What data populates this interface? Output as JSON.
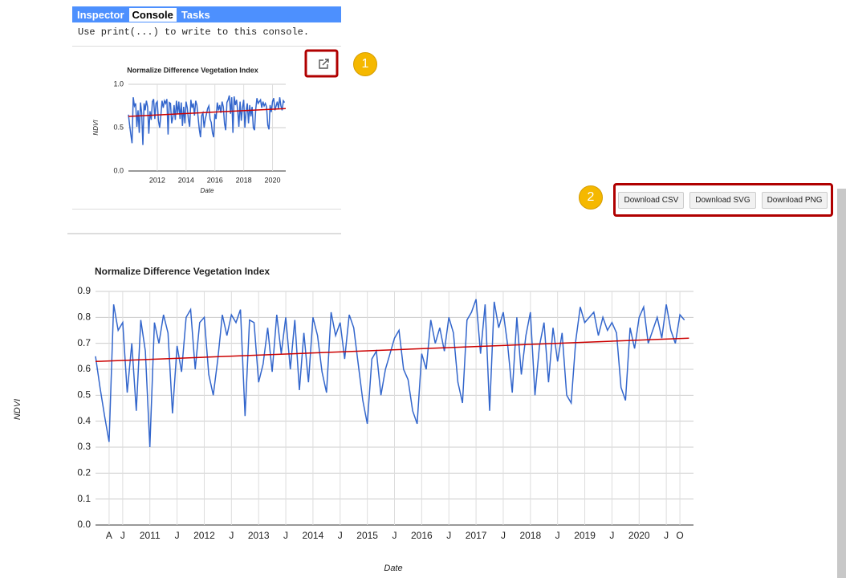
{
  "tabs": [
    "Inspector",
    "Console",
    "Tasks"
  ],
  "console_text": "Use print(...) to write to this console.",
  "annotations": [
    "1",
    "2"
  ],
  "buttons": [
    "Download CSV",
    "Download SVG",
    "Download PNG"
  ],
  "chart_data": [
    {
      "type": "line",
      "title": "Normalize Difference Vegetation Index",
      "x_label": "Date",
      "y_label": "NDVI",
      "xlim": [
        "2010-01",
        "2020-12"
      ],
      "ylim": [
        0,
        1.0
      ],
      "xticks": [
        {
          "value": "2012-01",
          "label": "2012"
        },
        {
          "value": "2014-01",
          "label": "2014"
        },
        {
          "value": "2016-01",
          "label": "2016"
        },
        {
          "value": "2018-01",
          "label": "2018"
        },
        {
          "value": "2020-01",
          "label": "2020"
        }
      ],
      "yticks": [
        {
          "value": 0,
          "label": "0.0"
        },
        0.5,
        {
          "value": 1.0,
          "label": "1.0"
        }
      ],
      "grid": true,
      "x": [
        "2010-01",
        "2010-02",
        "2010-03",
        "2010-04",
        "2010-05",
        "2010-06",
        "2010-07",
        "2010-08",
        "2010-09",
        "2010-10",
        "2010-11",
        "2010-12",
        "2011-01",
        "2011-02",
        "2011-03",
        "2011-04",
        "2011-05",
        "2011-06",
        "2011-07",
        "2011-08",
        "2011-09",
        "2011-10",
        "2011-11",
        "2011-12",
        "2012-01",
        "2012-02",
        "2012-03",
        "2012-04",
        "2012-05",
        "2012-06",
        "2012-07",
        "2012-08",
        "2012-09",
        "2012-10",
        "2012-11",
        "2012-12",
        "2013-01",
        "2013-02",
        "2013-03",
        "2013-04",
        "2013-05",
        "2013-06",
        "2013-07",
        "2013-08",
        "2013-09",
        "2013-10",
        "2013-11",
        "2013-12",
        "2014-01",
        "2014-02",
        "2014-03",
        "2014-04",
        "2014-05",
        "2014-06",
        "2014-07",
        "2014-08",
        "2014-09",
        "2014-10",
        "2014-11",
        "2014-12",
        "2015-01",
        "2015-02",
        "2015-03",
        "2015-04",
        "2015-05",
        "2015-06",
        "2015-07",
        "2015-08",
        "2015-09",
        "2015-10",
        "2015-11",
        "2015-12",
        "2016-01",
        "2016-02",
        "2016-03",
        "2016-04",
        "2016-05",
        "2016-06",
        "2016-07",
        "2016-08",
        "2016-09",
        "2016-10",
        "2016-11",
        "2016-12",
        "2017-01",
        "2017-02",
        "2017-03",
        "2017-04",
        "2017-05",
        "2017-06",
        "2017-07",
        "2017-08",
        "2017-09",
        "2017-10",
        "2017-11",
        "2017-12",
        "2018-01",
        "2018-02",
        "2018-03",
        "2018-04",
        "2018-05",
        "2018-06",
        "2018-07",
        "2018-08",
        "2018-09",
        "2018-10",
        "2018-11",
        "2018-12",
        "2019-01",
        "2019-02",
        "2019-03",
        "2019-04",
        "2019-05",
        "2019-06",
        "2019-07",
        "2019-08",
        "2019-09",
        "2019-10",
        "2019-11",
        "2019-12",
        "2020-01",
        "2020-02",
        "2020-03",
        "2020-04",
        "2020-05",
        "2020-06",
        "2020-07",
        "2020-08",
        "2020-09",
        "2020-10",
        "2020-11"
      ],
      "series": [
        {
          "color": "#3366cc",
          "values": [
            0.65,
            0.53,
            0.42,
            0.32,
            0.85,
            0.75,
            0.78,
            0.51,
            0.7,
            0.44,
            0.79,
            0.67,
            0.3,
            0.78,
            0.7,
            0.81,
            0.74,
            0.43,
            0.69,
            0.59,
            0.8,
            0.83,
            0.6,
            0.78,
            0.8,
            0.58,
            0.5,
            0.64,
            0.81,
            0.73,
            0.81,
            0.78,
            0.83,
            0.42,
            0.79,
            0.78,
            0.55,
            0.62,
            0.76,
            0.59,
            0.81,
            0.66,
            0.8,
            0.6,
            0.79,
            0.52,
            0.74,
            0.55,
            0.8,
            0.73,
            0.59,
            0.51,
            0.82,
            0.73,
            0.78,
            0.64,
            0.81,
            0.76,
            0.62,
            0.48,
            0.39,
            0.64,
            0.67,
            0.5,
            0.6,
            0.66,
            0.72,
            0.75,
            0.6,
            0.56,
            0.44,
            0.39,
            0.66,
            0.6,
            0.79,
            0.7,
            0.76,
            0.67,
            0.8,
            0.74,
            0.55,
            0.47,
            0.79,
            0.82,
            0.87,
            0.66,
            0.85,
            0.44,
            0.86,
            0.76,
            0.82,
            0.69,
            0.51,
            0.8,
            0.58,
            0.73,
            0.82,
            0.5,
            0.69,
            0.78,
            0.55,
            0.76,
            0.63,
            0.74,
            0.5,
            0.47,
            0.71,
            0.84,
            0.78,
            0.8,
            0.82,
            0.73,
            0.8,
            0.75,
            0.78,
            0.74,
            0.53,
            0.48,
            0.76,
            0.68,
            0.8,
            0.84,
            0.7,
            0.75,
            0.8,
            0.72,
            0.85,
            0.75,
            0.7,
            0.81,
            0.79
          ]
        }
      ],
      "trend": {
        "color": "#cc0000",
        "x": [
          "2010-01",
          "2020-12"
        ],
        "values": [
          0.63,
          0.72
        ]
      }
    },
    {
      "type": "line",
      "title": "Normalize Difference Vegetation Index",
      "x_label": "Date",
      "y_label": "NDVI",
      "xlim": [
        "2010-01",
        "2021-01"
      ],
      "ylim": [
        0,
        0.9
      ],
      "xticks": [
        {
          "value": "2010-04",
          "label": "A"
        },
        {
          "value": "2010-07",
          "label": "J"
        },
        {
          "value": "2011-01",
          "label": "2011"
        },
        {
          "value": "2011-07",
          "label": "J"
        },
        {
          "value": "2012-01",
          "label": "2012"
        },
        {
          "value": "2012-07",
          "label": "J"
        },
        {
          "value": "2013-01",
          "label": "2013"
        },
        {
          "value": "2013-07",
          "label": "J"
        },
        {
          "value": "2014-01",
          "label": "2014"
        },
        {
          "value": "2014-07",
          "label": "J"
        },
        {
          "value": "2015-01",
          "label": "2015"
        },
        {
          "value": "2015-07",
          "label": "J"
        },
        {
          "value": "2016-01",
          "label": "2016"
        },
        {
          "value": "2016-07",
          "label": "J"
        },
        {
          "value": "2017-01",
          "label": "2017"
        },
        {
          "value": "2017-07",
          "label": "J"
        },
        {
          "value": "2018-01",
          "label": "2018"
        },
        {
          "value": "2018-07",
          "label": "J"
        },
        {
          "value": "2019-01",
          "label": "2019"
        },
        {
          "value": "2019-07",
          "label": "J"
        },
        {
          "value": "2020-01",
          "label": "2020"
        },
        {
          "value": "2020-07",
          "label": "J"
        },
        {
          "value": "2020-10",
          "label": "O"
        }
      ],
      "yticks": [
        {
          "value": 0,
          "label": "0.0"
        },
        0.1,
        0.2,
        0.3,
        0.4,
        0.5,
        0.6,
        0.7,
        0.8,
        0.9
      ],
      "grid": true,
      "x": [
        "2010-01",
        "2010-02",
        "2010-03",
        "2010-04",
        "2010-05",
        "2010-06",
        "2010-07",
        "2010-08",
        "2010-09",
        "2010-10",
        "2010-11",
        "2010-12",
        "2011-01",
        "2011-02",
        "2011-03",
        "2011-04",
        "2011-05",
        "2011-06",
        "2011-07",
        "2011-08",
        "2011-09",
        "2011-10",
        "2011-11",
        "2011-12",
        "2012-01",
        "2012-02",
        "2012-03",
        "2012-04",
        "2012-05",
        "2012-06",
        "2012-07",
        "2012-08",
        "2012-09",
        "2012-10",
        "2012-11",
        "2012-12",
        "2013-01",
        "2013-02",
        "2013-03",
        "2013-04",
        "2013-05",
        "2013-06",
        "2013-07",
        "2013-08",
        "2013-09",
        "2013-10",
        "2013-11",
        "2013-12",
        "2014-01",
        "2014-02",
        "2014-03",
        "2014-04",
        "2014-05",
        "2014-06",
        "2014-07",
        "2014-08",
        "2014-09",
        "2014-10",
        "2014-11",
        "2014-12",
        "2015-01",
        "2015-02",
        "2015-03",
        "2015-04",
        "2015-05",
        "2015-06",
        "2015-07",
        "2015-08",
        "2015-09",
        "2015-10",
        "2015-11",
        "2015-12",
        "2016-01",
        "2016-02",
        "2016-03",
        "2016-04",
        "2016-05",
        "2016-06",
        "2016-07",
        "2016-08",
        "2016-09",
        "2016-10",
        "2016-11",
        "2016-12",
        "2017-01",
        "2017-02",
        "2017-03",
        "2017-04",
        "2017-05",
        "2017-06",
        "2017-07",
        "2017-08",
        "2017-09",
        "2017-10",
        "2017-11",
        "2017-12",
        "2018-01",
        "2018-02",
        "2018-03",
        "2018-04",
        "2018-05",
        "2018-06",
        "2018-07",
        "2018-08",
        "2018-09",
        "2018-10",
        "2018-11",
        "2018-12",
        "2019-01",
        "2019-02",
        "2019-03",
        "2019-04",
        "2019-05",
        "2019-06",
        "2019-07",
        "2019-08",
        "2019-09",
        "2019-10",
        "2019-11",
        "2019-12",
        "2020-01",
        "2020-02",
        "2020-03",
        "2020-04",
        "2020-05",
        "2020-06",
        "2020-07",
        "2020-08",
        "2020-09",
        "2020-10",
        "2020-11"
      ],
      "series": [
        {
          "color": "#3366cc",
          "values": [
            0.65,
            0.53,
            0.42,
            0.32,
            0.85,
            0.75,
            0.78,
            0.51,
            0.7,
            0.44,
            0.79,
            0.67,
            0.3,
            0.78,
            0.7,
            0.81,
            0.74,
            0.43,
            0.69,
            0.59,
            0.8,
            0.83,
            0.6,
            0.78,
            0.8,
            0.58,
            0.5,
            0.64,
            0.81,
            0.73,
            0.81,
            0.78,
            0.83,
            0.42,
            0.79,
            0.78,
            0.55,
            0.62,
            0.76,
            0.59,
            0.81,
            0.66,
            0.8,
            0.6,
            0.79,
            0.52,
            0.74,
            0.55,
            0.8,
            0.73,
            0.59,
            0.51,
            0.82,
            0.73,
            0.78,
            0.64,
            0.81,
            0.76,
            0.62,
            0.48,
            0.39,
            0.64,
            0.67,
            0.5,
            0.6,
            0.66,
            0.72,
            0.75,
            0.6,
            0.56,
            0.44,
            0.39,
            0.66,
            0.6,
            0.79,
            0.7,
            0.76,
            0.67,
            0.8,
            0.74,
            0.55,
            0.47,
            0.79,
            0.82,
            0.87,
            0.66,
            0.85,
            0.44,
            0.86,
            0.76,
            0.82,
            0.69,
            0.51,
            0.8,
            0.58,
            0.73,
            0.82,
            0.5,
            0.69,
            0.78,
            0.55,
            0.76,
            0.63,
            0.74,
            0.5,
            0.47,
            0.71,
            0.84,
            0.78,
            0.8,
            0.82,
            0.73,
            0.8,
            0.75,
            0.78,
            0.74,
            0.53,
            0.48,
            0.76,
            0.68,
            0.8,
            0.84,
            0.7,
            0.75,
            0.8,
            0.72,
            0.85,
            0.75,
            0.7,
            0.81,
            0.79
          ]
        }
      ],
      "trend": {
        "color": "#cc0000",
        "x": [
          "2010-01",
          "2020-12"
        ],
        "values": [
          0.63,
          0.72
        ]
      }
    }
  ]
}
